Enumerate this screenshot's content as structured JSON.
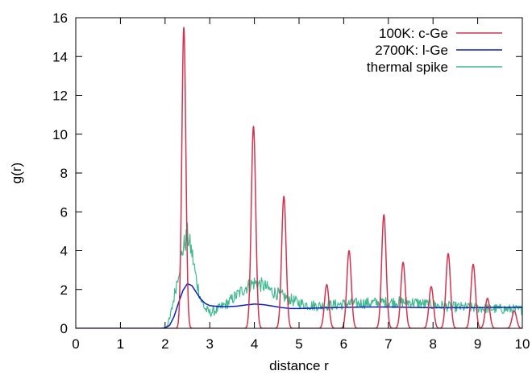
{
  "chart_data": {
    "type": "line",
    "title": "",
    "xlabel": "distance r",
    "ylabel": "g(r)",
    "xlim": [
      0,
      10
    ],
    "ylim": [
      0,
      16
    ],
    "xticks": [
      0,
      1,
      2,
      3,
      4,
      5,
      6,
      7,
      8,
      9,
      10
    ],
    "yticks": [
      0,
      2,
      4,
      6,
      8,
      10,
      12,
      14,
      16
    ],
    "grid": false,
    "legend_position": "top-right",
    "series": [
      {
        "name": "100K: c-Ge",
        "color": "#d1334f",
        "style": "sharp peaks",
        "peaks": [
          {
            "r": 2.42,
            "height": 15.5,
            "width": 0.045
          },
          {
            "r": 3.98,
            "height": 10.4,
            "width": 0.05
          },
          {
            "r": 4.66,
            "height": 6.8,
            "width": 0.05
          },
          {
            "r": 5.62,
            "height": 2.25,
            "width": 0.05
          },
          {
            "r": 6.12,
            "height": 4.0,
            "width": 0.05
          },
          {
            "r": 6.9,
            "height": 5.85,
            "width": 0.05
          },
          {
            "r": 7.33,
            "height": 3.4,
            "width": 0.05
          },
          {
            "r": 7.96,
            "height": 2.15,
            "width": 0.05
          },
          {
            "r": 8.34,
            "height": 3.85,
            "width": 0.05
          },
          {
            "r": 8.9,
            "height": 3.3,
            "width": 0.05
          },
          {
            "r": 9.22,
            "height": 1.55,
            "width": 0.05
          },
          {
            "r": 9.82,
            "height": 0.9,
            "width": 0.05
          }
        ]
      },
      {
        "name": "2700K: l-Ge",
        "color": "#0a1fbf",
        "x": [
          0,
          1.9,
          2.0,
          2.1,
          2.2,
          2.3,
          2.4,
          2.5,
          2.6,
          2.7,
          2.8,
          2.9,
          3.0,
          3.2,
          3.4,
          3.6,
          3.8,
          4.0,
          4.2,
          4.4,
          4.6,
          4.8,
          5.0,
          5.5,
          6.0,
          6.5,
          7.0,
          7.5,
          8.0,
          8.5,
          9.0,
          9.5,
          10.0
        ],
        "y": [
          0,
          0,
          0.02,
          0.15,
          0.6,
          1.3,
          1.95,
          2.3,
          2.2,
          1.85,
          1.5,
          1.28,
          1.17,
          1.12,
          1.12,
          1.14,
          1.2,
          1.25,
          1.22,
          1.15,
          1.07,
          1.02,
          1.02,
          1.05,
          1.08,
          1.1,
          1.1,
          1.08,
          1.06,
          1.06,
          1.07,
          1.08,
          1.08
        ]
      },
      {
        "name": "thermal spike",
        "color": "#3fb98f",
        "style": "noisy",
        "x": [
          0,
          1.9,
          2.0,
          2.1,
          2.2,
          2.3,
          2.4,
          2.5,
          2.6,
          2.7,
          2.8,
          2.9,
          3.0,
          3.2,
          3.4,
          3.6,
          3.8,
          4.0,
          4.2,
          4.4,
          4.6,
          4.8,
          5.0,
          5.2,
          5.5,
          6.0,
          6.5,
          7.0,
          7.5,
          8.0,
          8.5,
          9.0,
          9.5,
          10.0
        ],
        "y": [
          0,
          0,
          0.05,
          0.4,
          1.6,
          2.9,
          4.1,
          4.8,
          3.9,
          2.5,
          1.5,
          1.0,
          0.8,
          1.0,
          1.3,
          1.7,
          2.1,
          2.35,
          2.2,
          1.9,
          1.7,
          1.5,
          1.3,
          1.2,
          1.15,
          1.25,
          1.3,
          1.35,
          1.35,
          1.2,
          1.1,
          1.05,
          1.0,
          0.95
        ]
      }
    ]
  }
}
